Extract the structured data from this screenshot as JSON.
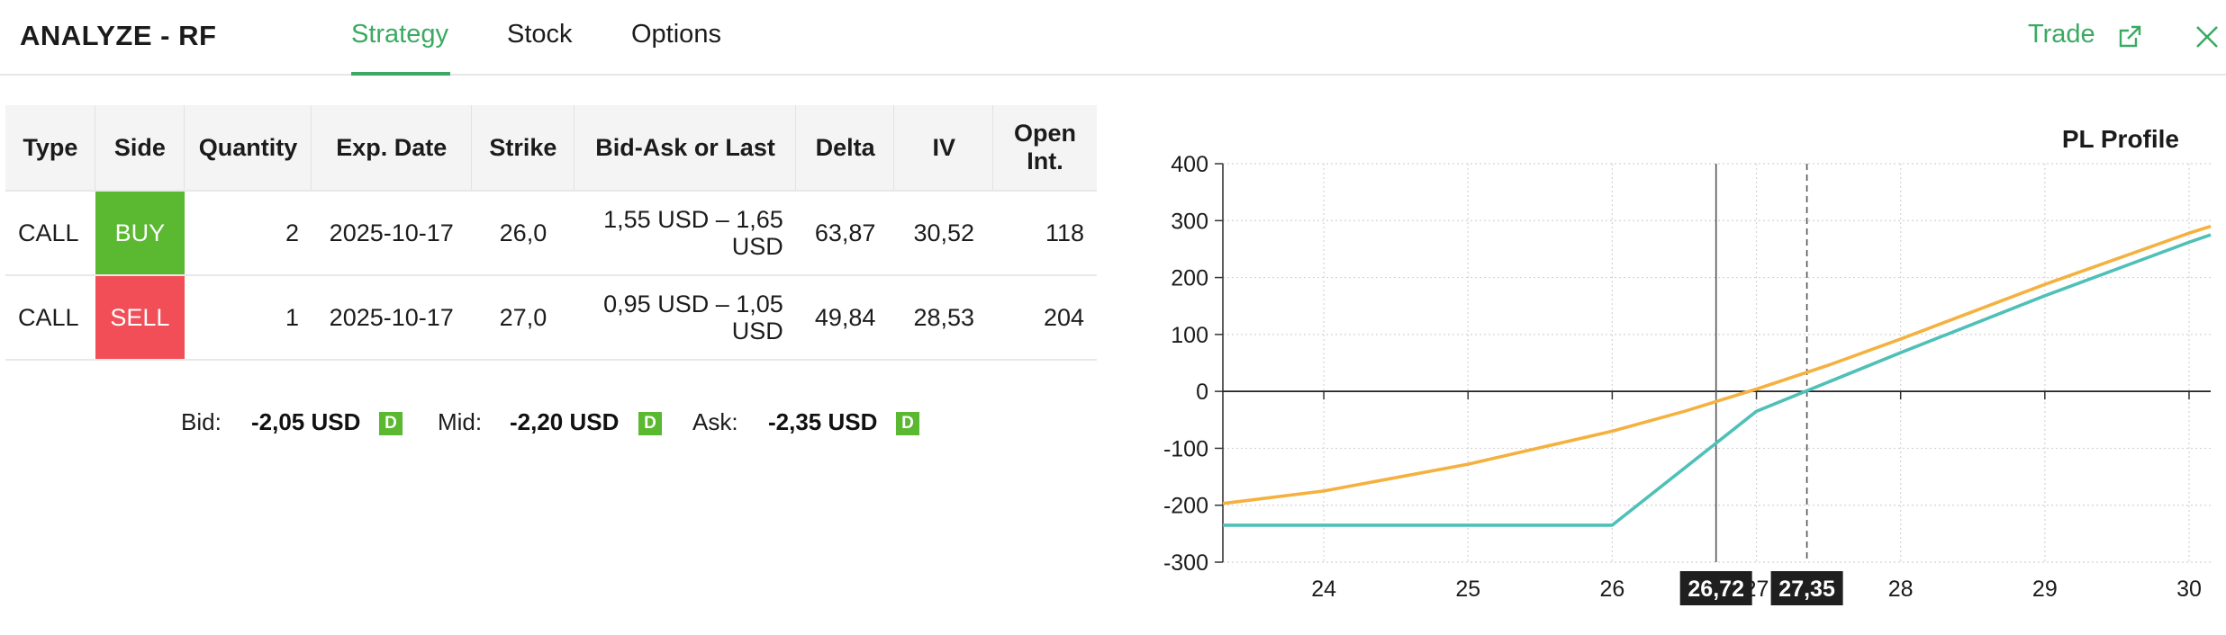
{
  "header": {
    "title": "ANALYZE - RF",
    "tabs": [
      {
        "label": "Strategy",
        "active": true
      },
      {
        "label": "Stock",
        "active": false
      },
      {
        "label": "Options",
        "active": false
      }
    ],
    "trade_label": "Trade",
    "trade_icon": "external-link-icon",
    "close_icon": "close-icon",
    "accent_color": "#3aaa62"
  },
  "legs_table": {
    "columns": [
      "Type",
      "Side",
      "Quantity",
      "Exp. Date",
      "Strike",
      "Bid-Ask or Last",
      "Delta",
      "IV",
      "Open Int."
    ],
    "rows": [
      {
        "type": "CALL",
        "side": "BUY",
        "quantity": "2",
        "exp_date": "2025-10-17",
        "strike": "26,0",
        "bid_ask": "1,55 USD – 1,65 USD",
        "delta": "63,87",
        "iv": "30,52",
        "open_int": "118",
        "side_color": "#5ab831"
      },
      {
        "type": "CALL",
        "side": "SELL",
        "quantity": "1",
        "exp_date": "2025-10-17",
        "strike": "27,0",
        "bid_ask": "0,95 USD – 1,05 USD",
        "delta": "49,84",
        "iv": "28,53",
        "open_int": "204",
        "side_color": "#f14e58"
      }
    ]
  },
  "prices": {
    "bid_label": "Bid:",
    "bid_value": "-2,05 USD",
    "mid_label": "Mid:",
    "mid_value": "-2,20 USD",
    "ask_label": "Ask:",
    "ask_value": "-2,35 USD",
    "badge": "D",
    "badge_color": "#5ab831"
  },
  "chart_data": {
    "type": "line",
    "title": "PL Profile",
    "xlim": [
      23.3,
      30.15
    ],
    "ylim": [
      -300,
      400
    ],
    "x_ticks": [
      "24",
      "25",
      "26",
      "27",
      "28",
      "29",
      "30"
    ],
    "y_ticks": [
      "400",
      "300",
      "200",
      "100",
      "0",
      "-100",
      "-200",
      "-300"
    ],
    "grid": true,
    "markers": [
      {
        "x": 26.72,
        "label": "26,72",
        "style": "solid"
      },
      {
        "x": 27.35,
        "label": "27,35",
        "style": "dashed"
      }
    ],
    "series": [
      {
        "color": "#f5b13f",
        "x": [
          23.3,
          24,
          25,
          26,
          26.5,
          27,
          27.5,
          28,
          29,
          30,
          30.15
        ],
        "y": [
          -197,
          -175,
          -128,
          -70,
          -35,
          4,
          46,
          92,
          188,
          278,
          290
        ]
      },
      {
        "color": "#4fc0b8",
        "x": [
          23.3,
          26,
          27,
          28,
          29,
          30,
          30.15
        ],
        "y": [
          -235,
          -235,
          -35,
          68,
          168,
          262,
          275
        ]
      }
    ]
  }
}
